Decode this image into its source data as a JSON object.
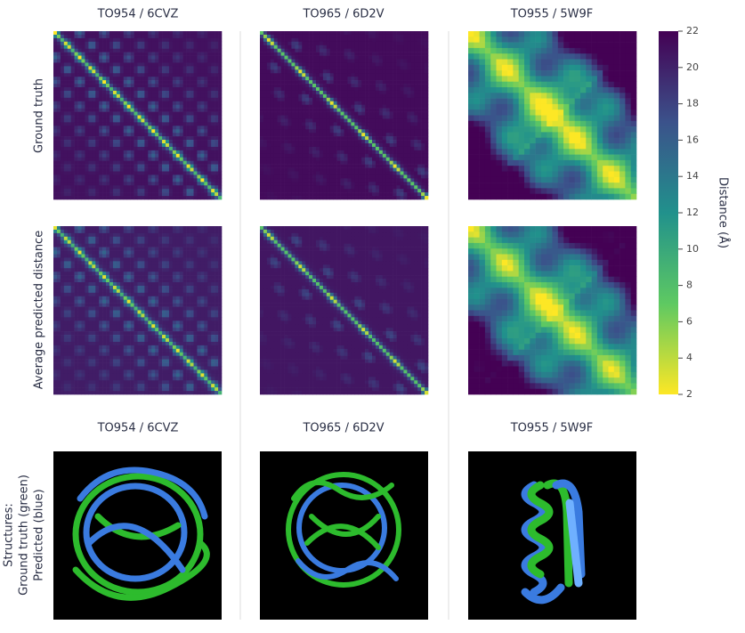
{
  "columns": [
    "TO954 / 6CVZ",
    "TO965 / 6D2V",
    "TO955 / 5W9F"
  ],
  "rows": [
    "Ground truth",
    "Average predicted distance"
  ],
  "structures": {
    "titles": [
      "TO954 / 6CVZ",
      "TO965 / 6D2V",
      "TO955 / 5W9F"
    ],
    "label": [
      "Structures:",
      "Ground truth (green)",
      "Predicted (blue)"
    ]
  },
  "colorbar": {
    "label": "Distance (Å)",
    "ticks": [
      22,
      20,
      18,
      16,
      14,
      12,
      10,
      8,
      6,
      4,
      2
    ]
  }
}
